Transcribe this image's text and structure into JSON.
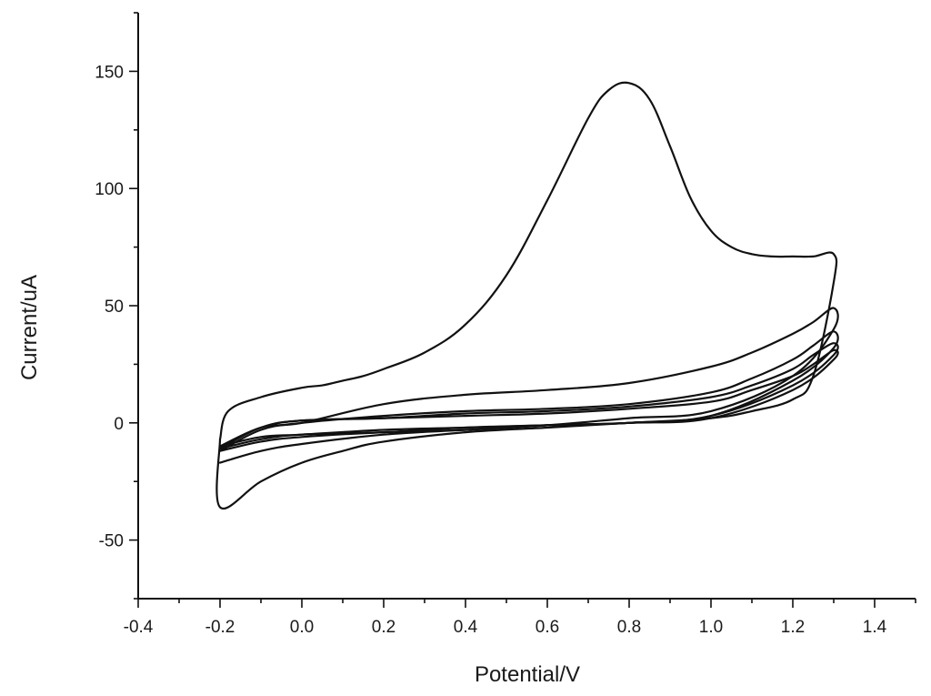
{
  "chart_data": {
    "type": "line",
    "xlabel": "Potential/V",
    "ylabel": "Current/uA",
    "xlim": [
      -0.4,
      1.5
    ],
    "ylim": [
      -75,
      175
    ],
    "x_ticks": [
      -0.4,
      -0.2,
      0.0,
      0.2,
      0.4,
      0.6,
      0.8,
      1.0,
      1.2,
      1.4
    ],
    "x_tick_labels": [
      "-0.4",
      "-0.2",
      "0.0",
      "0.2",
      "0.4",
      "0.6",
      "0.8",
      "1.0",
      "1.2",
      "1.4"
    ],
    "y_ticks": [
      -50,
      0,
      50,
      100,
      150
    ],
    "y_tick_labels": [
      "-50",
      "0",
      "50",
      "100",
      "150"
    ],
    "grid": false,
    "legend": "none",
    "series_color": "#111111",
    "series": [
      {
        "x": [
          -0.2,
          -0.18,
          -0.1,
          0.0,
          0.05,
          0.1,
          0.15,
          0.2,
          0.3,
          0.4,
          0.5,
          0.6,
          0.7,
          0.75,
          0.8,
          0.85,
          0.9,
          0.95,
          1.0,
          1.05,
          1.1,
          1.15,
          1.2,
          1.25,
          1.3,
          1.3,
          1.25,
          1.2,
          1.1,
          1.0,
          0.8,
          0.6,
          0.4,
          0.2,
          0.1,
          0.0,
          -0.1,
          -0.2,
          -0.2
        ],
        "y": [
          -7,
          5,
          11,
          15,
          16,
          18,
          20,
          23,
          30,
          42,
          63,
          95,
          130,
          142,
          145,
          138,
          118,
          96,
          82,
          75,
          72,
          71,
          71,
          71,
          72,
          60,
          20,
          10,
          5,
          2,
          0,
          -2,
          -4,
          -8,
          -12,
          -17,
          -25,
          -36,
          -7
        ]
      },
      {
        "x": [
          -0.2,
          -0.1,
          0.0,
          0.2,
          0.4,
          0.6,
          0.8,
          1.0,
          1.1,
          1.2,
          1.25,
          1.3,
          1.3,
          1.2,
          1.0,
          0.8,
          0.6,
          0.4,
          0.2,
          0.0,
          -0.1,
          -0.2
        ],
        "y": [
          -10,
          -2,
          0,
          8,
          12,
          14,
          17,
          24,
          30,
          38,
          43,
          49,
          40,
          20,
          5,
          2,
          -1,
          -3,
          -5,
          -9,
          -12,
          -17
        ]
      },
      {
        "x": [
          -0.2,
          -0.1,
          0.0,
          0.2,
          0.4,
          0.6,
          0.8,
          1.0,
          1.1,
          1.2,
          1.25,
          1.3,
          1.3,
          1.2,
          1.0,
          0.8,
          0.6,
          0.4,
          0.2,
          0.0,
          -0.1,
          -0.2
        ],
        "y": [
          -12,
          -3,
          0,
          3,
          5,
          6,
          8,
          13,
          19,
          27,
          33,
          39,
          32,
          18,
          3,
          0,
          -1,
          -3,
          -4,
          -6,
          -8,
          -12
        ]
      },
      {
        "x": [
          -0.2,
          -0.1,
          0.0,
          0.2,
          0.4,
          0.6,
          0.8,
          1.0,
          1.1,
          1.2,
          1.25,
          1.3,
          1.3,
          1.2,
          1.0,
          0.8,
          0.6,
          0.4,
          0.2,
          0.0,
          -0.1,
          -0.2
        ],
        "y": [
          -11,
          -2,
          1,
          2,
          4,
          5,
          7,
          11,
          16,
          23,
          29,
          34,
          29,
          16,
          3,
          0,
          -1,
          -2,
          -4,
          -5,
          -7,
          -11
        ]
      },
      {
        "x": [
          -0.2,
          -0.1,
          0.0,
          0.2,
          0.4,
          0.6,
          0.8,
          1.0,
          1.1,
          1.2,
          1.25,
          1.3,
          1.3,
          1.2,
          1.0,
          0.8,
          0.6,
          0.4,
          0.2,
          0.0,
          -0.1,
          -0.2
        ],
        "y": [
          -10,
          -2,
          1,
          2,
          3,
          4,
          6,
          9,
          14,
          20,
          25,
          31,
          27,
          14,
          2,
          0,
          -1,
          -2,
          -3,
          -5,
          -6,
          -10
        ]
      }
    ]
  }
}
